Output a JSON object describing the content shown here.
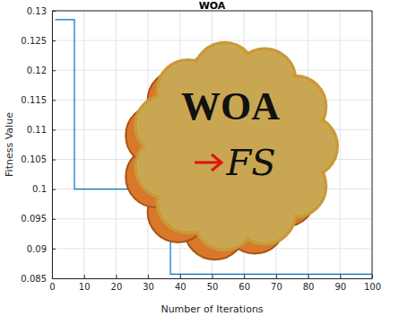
{
  "chart_data": {
    "type": "line",
    "title": "WOA",
    "x_label": "Number of Iterations",
    "y_label": "Fitness Value",
    "x": [
      1,
      7,
      37,
      100
    ],
    "values": [
      0.1285,
      0.1,
      0.0857,
      0.0857
    ],
    "color": "#0072bd",
    "line_style": "step",
    "xlim": [
      0,
      100
    ],
    "xticks": [
      0,
      10,
      20,
      30,
      40,
      50,
      60,
      70,
      80,
      90,
      100
    ],
    "ylim": [
      0.085,
      0.13
    ],
    "yticks": [
      0.085,
      0.09,
      0.095,
      0.1,
      0.105,
      0.11,
      0.115,
      0.12,
      0.125,
      0.13
    ],
    "grid": true,
    "annotations": [
      "WOA",
      "FS"
    ]
  }
}
